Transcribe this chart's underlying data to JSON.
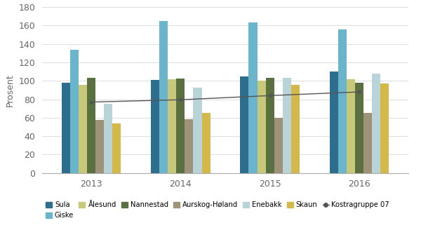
{
  "years": [
    2013,
    2014,
    2015,
    2016
  ],
  "series_order": [
    "Sula",
    "Giske",
    "Ålesund",
    "Nannestad",
    "Aurskog-Høland",
    "Enebakk",
    "Skaun"
  ],
  "series": {
    "Sula": [
      97.8,
      100.9,
      104.7,
      110.4
    ],
    "Giske": [
      133.4,
      164.7,
      163.5,
      155.4
    ],
    "Ålesund": [
      96.0,
      101.5,
      100.0,
      102.0
    ],
    "Nannestad": [
      103.0,
      102.5,
      103.5,
      98.0
    ],
    "Aurskog-Høland": [
      57.5,
      58.5,
      60.0,
      65.0
    ],
    "Enebakk": [
      75.0,
      92.5,
      103.5,
      108.0
    ],
    "Skaun": [
      53.5,
      65.5,
      95.5,
      97.5
    ]
  },
  "kostragruppe07": [
    77.0,
    79.5,
    84.0,
    88.0
  ],
  "colors": {
    "Sula": "#2d6e8e",
    "Giske": "#6ab4cc",
    "Ålesund": "#c8c87a",
    "Nannestad": "#5a7040",
    "Aurskog-Høland": "#9e9278",
    "Enebakk": "#b8d4d8",
    "Skaun": "#d4b84a",
    "Kostragruppe 07": "#555555"
  },
  "ylabel": "Prosent",
  "ylim": [
    0,
    180
  ],
  "yticks": [
    0,
    20,
    40,
    60,
    80,
    100,
    120,
    140,
    160,
    180
  ],
  "background_color": "#ffffff",
  "grid_color": "#d8d8d8"
}
